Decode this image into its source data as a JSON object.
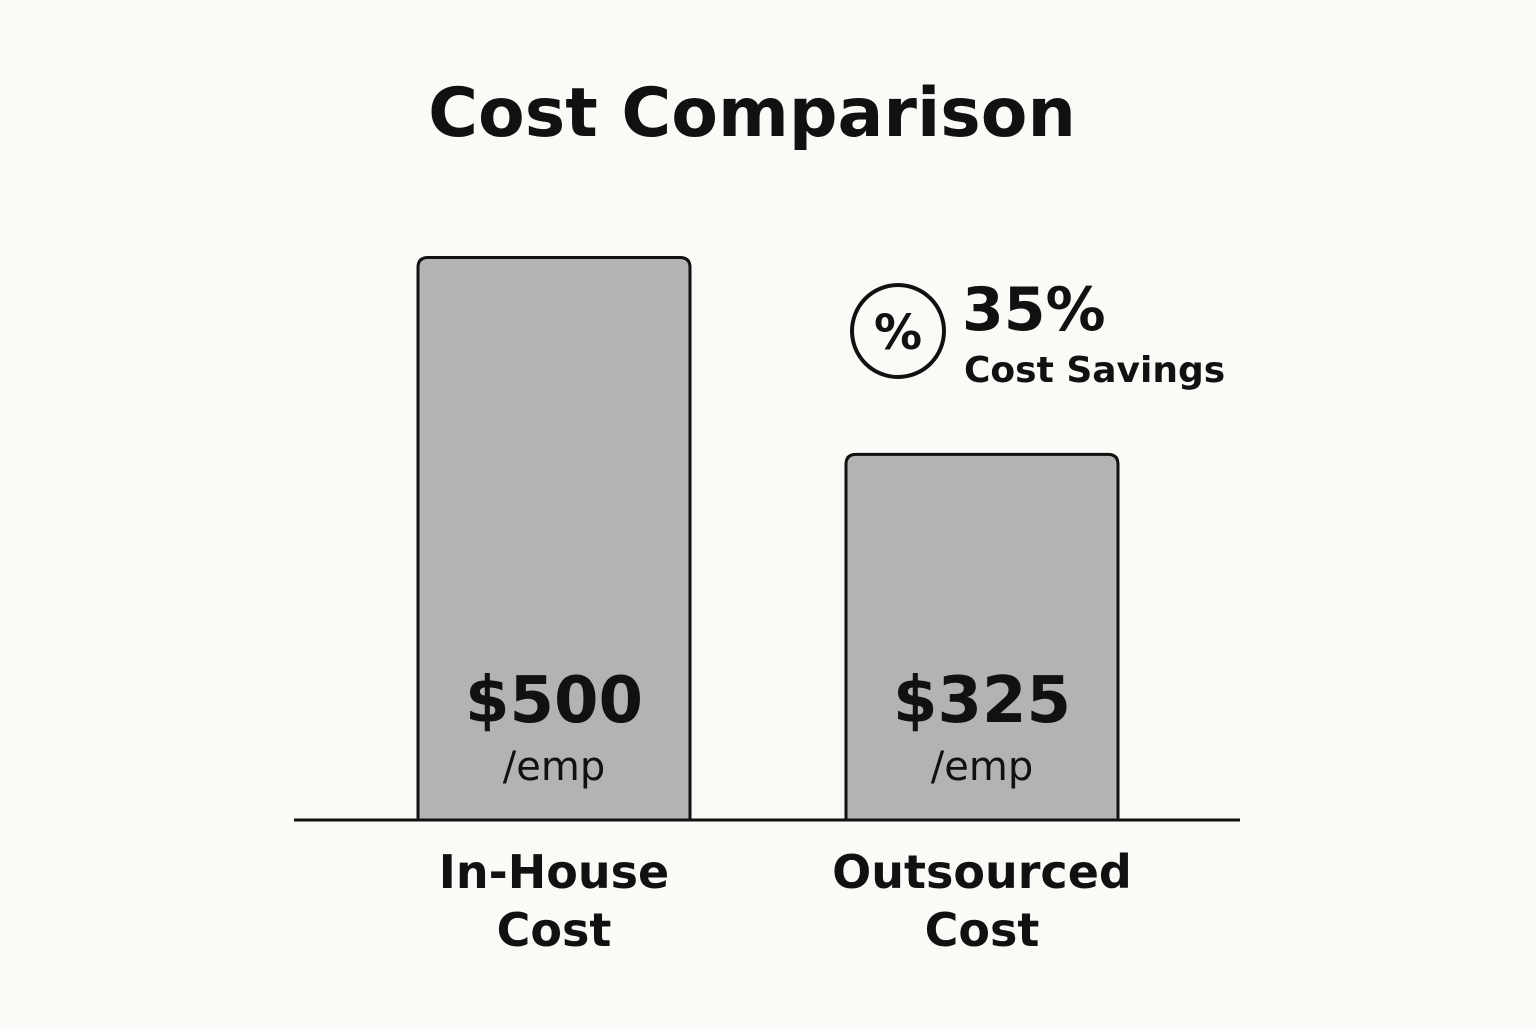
{
  "chart_data": {
    "type": "bar",
    "title": "Cost Comparison",
    "categories": [
      [
        "In-House",
        "Cost"
      ],
      [
        "Outsourced",
        "Cost"
      ]
    ],
    "values": [
      500,
      325
    ],
    "value_labels": [
      "$500",
      "$325"
    ],
    "unit_label": "/emp",
    "ylim": [
      0,
      520
    ],
    "grid": false,
    "colors": {
      "bar_fill": "#b3b3b3",
      "bar_stroke": "#111111",
      "axis": "#111111",
      "background": "#fbfaf7",
      "text": "#111111"
    },
    "annotation": {
      "icon": "percent-circle-icon",
      "icon_glyph": "%",
      "value": "35%",
      "label": "Cost Savings"
    }
  }
}
